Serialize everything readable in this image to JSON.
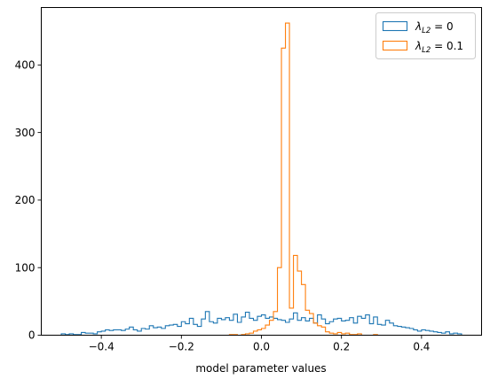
{
  "chart_data": {
    "type": "histogram",
    "xlabel": "model parameter values",
    "ylabel": "",
    "title": "",
    "xlim": [
      -0.55,
      0.55
    ],
    "ylim": [
      0,
      485
    ],
    "xticks": [
      -0.4,
      -0.2,
      0.0,
      0.2,
      0.4
    ],
    "xtick_labels": [
      "−0.4",
      "−0.2",
      "0.0",
      "0.2",
      "0.4"
    ],
    "yticks": [
      0,
      100,
      200,
      300,
      400
    ],
    "ytick_labels": [
      "0",
      "100",
      "200",
      "300",
      "400"
    ],
    "grid": false,
    "legend_position": "top-right",
    "series": [
      {
        "name_base": "λ",
        "name_sub": "L2",
        "name_rest": " = 0",
        "color": "#1f77b4",
        "bin_start": -0.5,
        "bin_width": 0.01,
        "counts": [
          2,
          1,
          2,
          1,
          1,
          4,
          3,
          3,
          2,
          5,
          6,
          8,
          7,
          8,
          8,
          7,
          9,
          12,
          8,
          6,
          10,
          9,
          14,
          11,
          12,
          10,
          14,
          15,
          16,
          13,
          20,
          17,
          25,
          16,
          13,
          24,
          35,
          20,
          18,
          25,
          23,
          26,
          22,
          31,
          19,
          27,
          34,
          25,
          22,
          28,
          30,
          25,
          27,
          25,
          23,
          22,
          19,
          24,
          33,
          22,
          26,
          21,
          25,
          18,
          30,
          24,
          17,
          20,
          24,
          25,
          21,
          22,
          26,
          18,
          28,
          25,
          30,
          17,
          27,
          16,
          15,
          22,
          18,
          14,
          13,
          12,
          11,
          10,
          8,
          6,
          8,
          7,
          6,
          5,
          4,
          3,
          5,
          2,
          3,
          2
        ]
      },
      {
        "name_base": "λ",
        "name_sub": "L2",
        "name_rest": " = 0.1",
        "color": "#ff7f0e",
        "bin_start": -0.3,
        "bin_width": 0.01,
        "counts": [
          0,
          0,
          0,
          0,
          0,
          0,
          0,
          0,
          0,
          0,
          0,
          0,
          0,
          0,
          0,
          0,
          0,
          0,
          0,
          0,
          0,
          0,
          1,
          1,
          0,
          1,
          2,
          3,
          6,
          8,
          10,
          15,
          22,
          35,
          100,
          425,
          462,
          40,
          118,
          95,
          75,
          37,
          32,
          18,
          14,
          12,
          5,
          3,
          2,
          4,
          2,
          3,
          1,
          1,
          2,
          0,
          0,
          0,
          1,
          0
        ]
      }
    ]
  }
}
